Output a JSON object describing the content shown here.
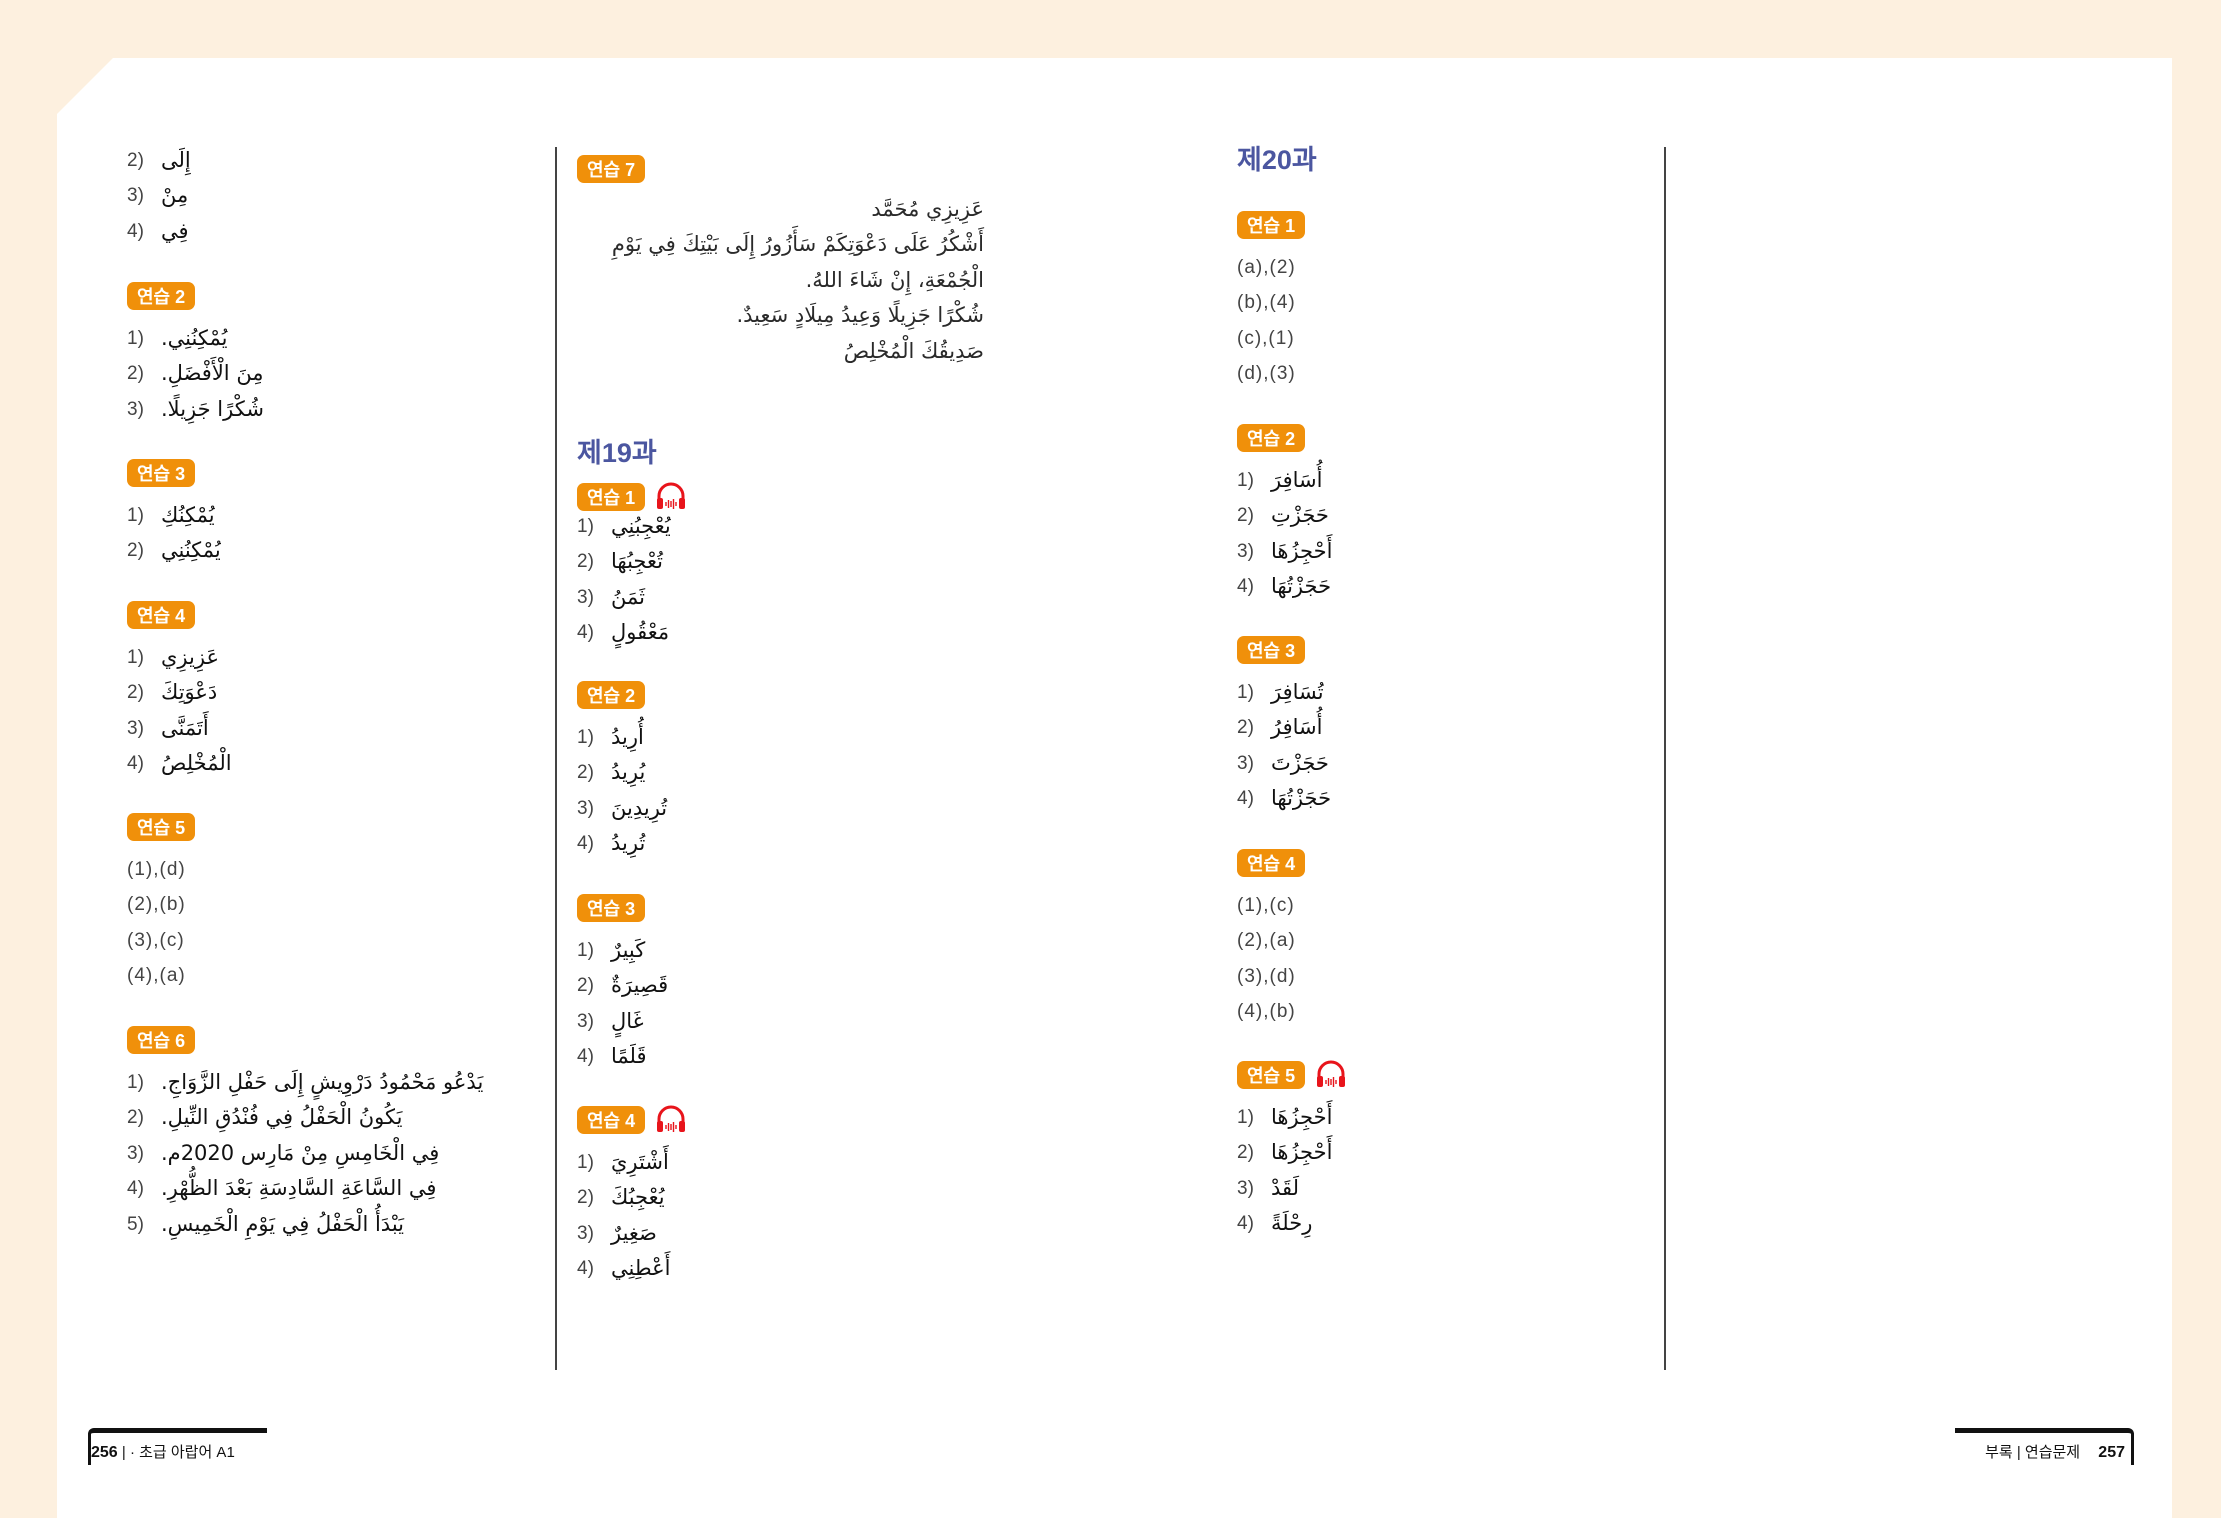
{
  "columns": [
    {
      "sections": [
        {
          "badge": null,
          "items": [
            {
              "num": "2)",
              "ar": "إِلَى"
            },
            {
              "num": "3)",
              "ar": "مِنْ"
            },
            {
              "num": "4)",
              "ar": "فِي"
            }
          ]
        },
        {
          "badge": "연습 2",
          "items": [
            {
              "num": "1)",
              "ar": "يُمْكِنُنِي."
            },
            {
              "num": "2)",
              "ar": "مِنَ الْأَفْضَلِ."
            },
            {
              "num": "3)",
              "ar": "شُكْرًا جَزِيلًا."
            }
          ]
        },
        {
          "badge": "연습 3",
          "items": [
            {
              "num": "1)",
              "ar": "يُمْكِنُكِ"
            },
            {
              "num": "2)",
              "ar": "يُمْكِنُنِي"
            }
          ]
        },
        {
          "badge": "연습 4",
          "items": [
            {
              "num": "1)",
              "ar": "عَزِيزِي"
            },
            {
              "num": "2)",
              "ar": "دَعْوَتِكَ"
            },
            {
              "num": "3)",
              "ar": "أَتَمَنَّى"
            },
            {
              "num": "4)",
              "ar": "الْمُخْلِصُ"
            }
          ]
        },
        {
          "badge": "연습 5",
          "items": [
            {
              "plain": "(1),(d)"
            },
            {
              "plain": "(2),(b)"
            },
            {
              "plain": "(3),(c)"
            },
            {
              "plain": "(4),(a)"
            }
          ]
        },
        {
          "badge": "연습 6",
          "items": [
            {
              "num": "1)",
              "ar": "يَدْعُو مَحْمُودُ دَرْوِيشٍ إِلَى حَفْلِ الزَّوَاجِ."
            },
            {
              "num": "2)",
              "ar": "يَكُونُ الْحَفْلُ فِي فُنْدُقِ النِّيلِ."
            },
            {
              "num": "3)",
              "ar": "فِي الْخَامِسِ مِنْ مَارِس 2020م."
            },
            {
              "num": "4)",
              "ar": "فِي السَّاعَةِ السَّادِسَةِ بَعْدَ الظُّهْرِ."
            },
            {
              "num": "5)",
              "ar": "يَبْدَأُ الْحَفْلُ فِي يَوْمِ الْخَمِيسِ."
            }
          ]
        }
      ]
    },
    {
      "sections": [
        {
          "badge": "연습 7",
          "letter": [
            "عَزِيزِي مُحَمَّد",
            "أَشْكُرُ عَلَى دَعْوَتِكَمْ سَأَزُورُ إِلَى بَيْتِكَ فِي يَوْمِ",
            "الْجُمْعَةِ، إِنْ شَاءَ اللهُ.",
            "شُكْرًا جَزِيلًا وَعِيدُ مِيلَادٍ سَعِيدٌ.",
            "صَدِيقُكَ الْمُخْلِصُ"
          ]
        },
        {
          "title": "제19과"
        },
        {
          "badge": "연습 1",
          "audio": true,
          "items": [
            {
              "num": "1)",
              "ar": "يُعْجِبُنِي"
            },
            {
              "num": "2)",
              "ar": "تُعْجِبُهَا"
            },
            {
              "num": "3)",
              "ar": "ثَمَنُ"
            },
            {
              "num": "4)",
              "ar": "مَعْقُولٍ"
            }
          ]
        },
        {
          "badge": "연습 2",
          "items": [
            {
              "num": "1)",
              "ar": "أُرِيدُ"
            },
            {
              "num": "2)",
              "ar": "يُرِيدُ"
            },
            {
              "num": "3)",
              "ar": "تُرِيدِينَ"
            },
            {
              "num": "4)",
              "ar": "تُرِيدُ"
            }
          ]
        },
        {
          "badge": "연습 3",
          "items": [
            {
              "num": "1)",
              "ar": "كَبِيرٌ"
            },
            {
              "num": "2)",
              "ar": "قَصِيرَةٌ"
            },
            {
              "num": "3)",
              "ar": "غَالٍ"
            },
            {
              "num": "4)",
              "ar": "قَلَمًا"
            }
          ]
        },
        {
          "badge": "연습 4",
          "audio": true,
          "items": [
            {
              "num": "1)",
              "ar": "أَشْتَرِيَ"
            },
            {
              "num": "2)",
              "ar": "يُعْجِبُكَ"
            },
            {
              "num": "3)",
              "ar": "صَغِيرٌ"
            },
            {
              "num": "4)",
              "ar": "أَعْطِنِي"
            }
          ]
        }
      ]
    },
    {
      "sections": [
        {
          "title": "제20과"
        },
        {
          "badge": "연습 1",
          "items": [
            {
              "plain": "(a),(2)"
            },
            {
              "plain": "(b),(4)"
            },
            {
              "plain": "(c),(1)"
            },
            {
              "plain": "(d),(3)"
            }
          ]
        },
        {
          "badge": "연습 2",
          "items": [
            {
              "num": "1)",
              "ar": "أُسَافِرَ"
            },
            {
              "num": "2)",
              "ar": "حَجَزْتِ"
            },
            {
              "num": "3)",
              "ar": "أَحْجِزُهَا"
            },
            {
              "num": "4)",
              "ar": "حَجَزْتُهَا"
            }
          ]
        },
        {
          "badge": "연습 3",
          "items": [
            {
              "num": "1)",
              "ar": "تُسَافِرَ"
            },
            {
              "num": "2)",
              "ar": "أُسَافِرُ"
            },
            {
              "num": "3)",
              "ar": "حَجَزْتَ"
            },
            {
              "num": "4)",
              "ar": "حَجَزْتُهَا"
            }
          ]
        },
        {
          "badge": "연습 4",
          "items": [
            {
              "plain": "(1),(c)"
            },
            {
              "plain": "(2),(a)"
            },
            {
              "plain": "(3),(d)"
            },
            {
              "plain": "(4),(b)"
            }
          ]
        },
        {
          "badge": "연습 5",
          "audio": true,
          "items": [
            {
              "num": "1)",
              "ar": "أَحْجِزُهَا"
            },
            {
              "num": "2)",
              "ar": "أَحْجِزُهَا"
            },
            {
              "num": "3)",
              "ar": "لَقَدْ"
            },
            {
              "num": "4)",
              "ar": "رِحْلَةً"
            }
          ]
        }
      ]
    }
  ],
  "footer": {
    "left_page": "256",
    "left_text": "| · 초급 아랍어 A1",
    "right_text": "부록 | 연습문제",
    "right_page": "257"
  },
  "colors": {
    "badge": "#f0900a",
    "title": "#4b56a0",
    "audio_icon": "#e8141b",
    "background": "#fdf0df"
  }
}
